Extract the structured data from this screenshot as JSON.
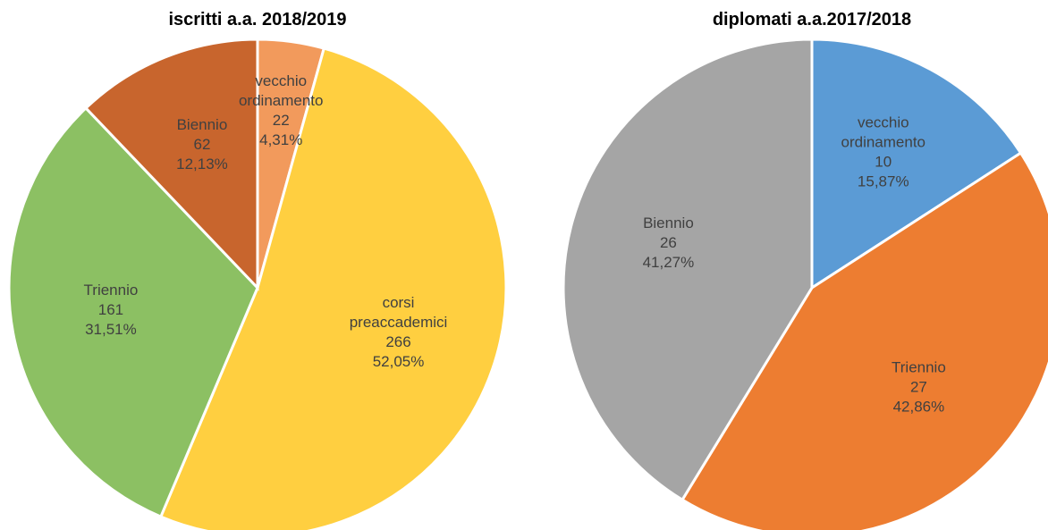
{
  "chart_data": [
    {
      "type": "pie",
      "title": "iscritti a.a. 2018/2019",
      "categories": [
        "vecchio ordinamento",
        "corsi preaccademici",
        "Triennio",
        "Biennio"
      ],
      "values": [
        22,
        266,
        161,
        62
      ],
      "percent_labels": [
        "4,31%",
        "52,05%",
        "31,51%",
        "12,13%"
      ],
      "colors": [
        "#f29a5c",
        "#ffcf40",
        "#8cc063",
        "#c8652d"
      ]
    },
    {
      "type": "pie",
      "title": "diplomati a.a.2017/2018",
      "categories": [
        "vecchio ordinamento",
        "Triennio",
        "Biennio"
      ],
      "values": [
        10,
        27,
        26
      ],
      "percent_labels": [
        "15,87%",
        "42,86%",
        "41,27%"
      ],
      "colors": [
        "#5b9bd5",
        "#ed7d31",
        "#a5a5a5"
      ]
    }
  ]
}
